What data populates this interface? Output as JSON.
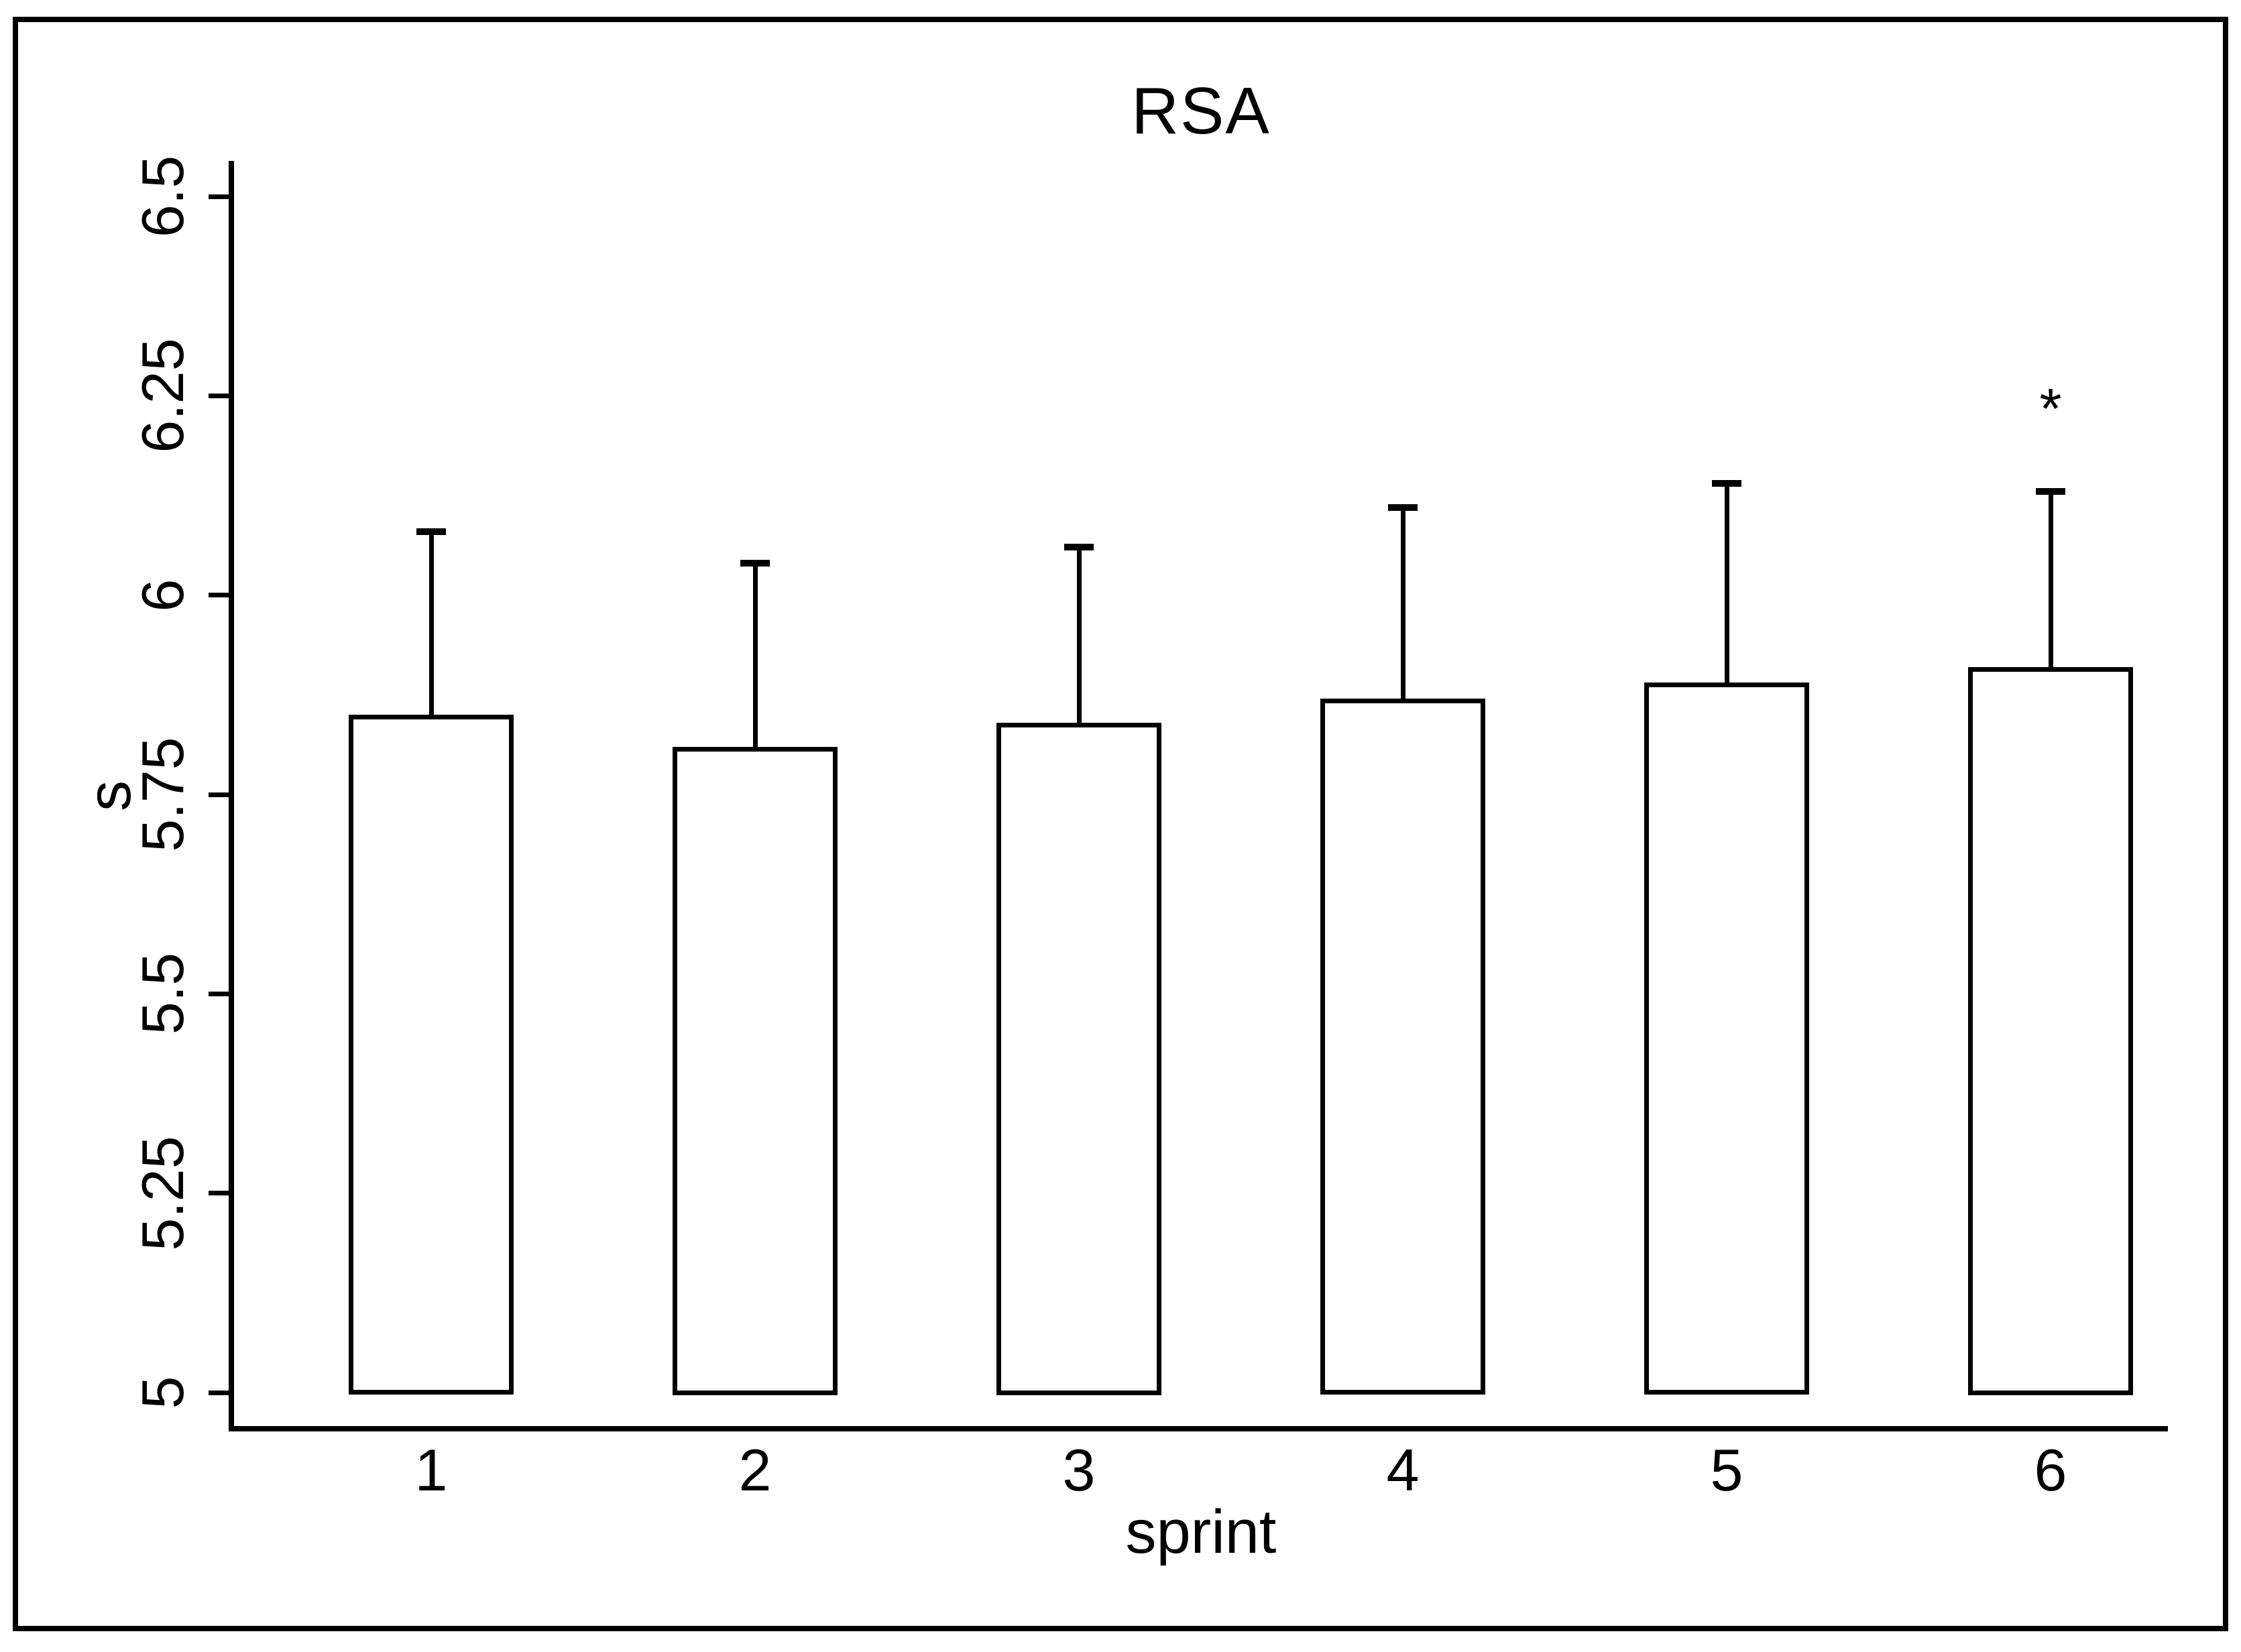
{
  "chart_data": {
    "type": "bar",
    "title": "RSA",
    "xlabel": "sprint",
    "ylabel": "s",
    "categories": [
      "1",
      "2",
      "3",
      "4",
      "5",
      "6"
    ],
    "values": [
      5.85,
      5.81,
      5.84,
      5.87,
      5.89,
      5.91
    ],
    "error_whisker_tops": [
      6.08,
      6.04,
      6.06,
      6.11,
      6.14,
      6.13
    ],
    "error_plus": [
      0.23,
      0.23,
      0.22,
      0.24,
      0.25,
      0.22
    ],
    "bar_baseline": 5,
    "ylim": [
      5,
      6.5
    ],
    "y_ticks": [
      5,
      5.25,
      5.5,
      5.75,
      6,
      6.25,
      6.5
    ],
    "y_tick_labels": [
      "5",
      "5.25",
      "5.5",
      "5.75",
      "6",
      "6.25",
      "6.5"
    ],
    "grid": "off",
    "legend": "none",
    "bar_fill": "#ffffff",
    "line_color": "#000000",
    "annotations": [
      {
        "text": "*",
        "bar_index": 5,
        "y_value": 6.24,
        "meaning": "significance-marker"
      }
    ]
  }
}
